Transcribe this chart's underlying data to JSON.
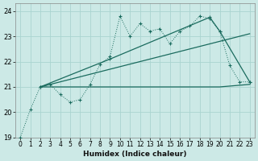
{
  "xlabel": "Humidex (Indice chaleur)",
  "bg_color": "#cce9e6",
  "grid_color": "#aad4d0",
  "line_color": "#1a6b5e",
  "xlim": [
    -0.5,
    23.5
  ],
  "ylim": [
    19,
    24.3
  ],
  "xticks": [
    0,
    1,
    2,
    3,
    4,
    5,
    6,
    7,
    8,
    9,
    10,
    11,
    12,
    13,
    14,
    15,
    16,
    17,
    18,
    19,
    20,
    21,
    22,
    23
  ],
  "yticks": [
    19,
    20,
    21,
    22,
    23,
    24
  ],
  "main_line_x": [
    0,
    1,
    2,
    3,
    4,
    5,
    6,
    7,
    8,
    9,
    10,
    11,
    12,
    13,
    14,
    15,
    16,
    17,
    18,
    19,
    20,
    21,
    22,
    23
  ],
  "main_line_y": [
    19.0,
    20.1,
    21.0,
    21.1,
    20.7,
    20.4,
    20.5,
    21.1,
    21.9,
    22.2,
    23.8,
    23.0,
    23.5,
    23.2,
    23.3,
    22.7,
    23.2,
    23.4,
    23.8,
    23.7,
    23.2,
    21.85,
    21.2,
    21.2
  ],
  "trend_line_x": [
    2,
    23
  ],
  "trend_line_y": [
    21.0,
    23.1
  ],
  "flat_line_x": [
    2,
    9,
    10,
    20,
    23
  ],
  "flat_line_y": [
    21.0,
    21.0,
    21.0,
    21.0,
    21.1
  ],
  "upper_line_x": [
    2,
    9,
    19,
    20,
    23
  ],
  "upper_line_y": [
    21.0,
    22.1,
    23.75,
    23.2,
    21.2
  ]
}
